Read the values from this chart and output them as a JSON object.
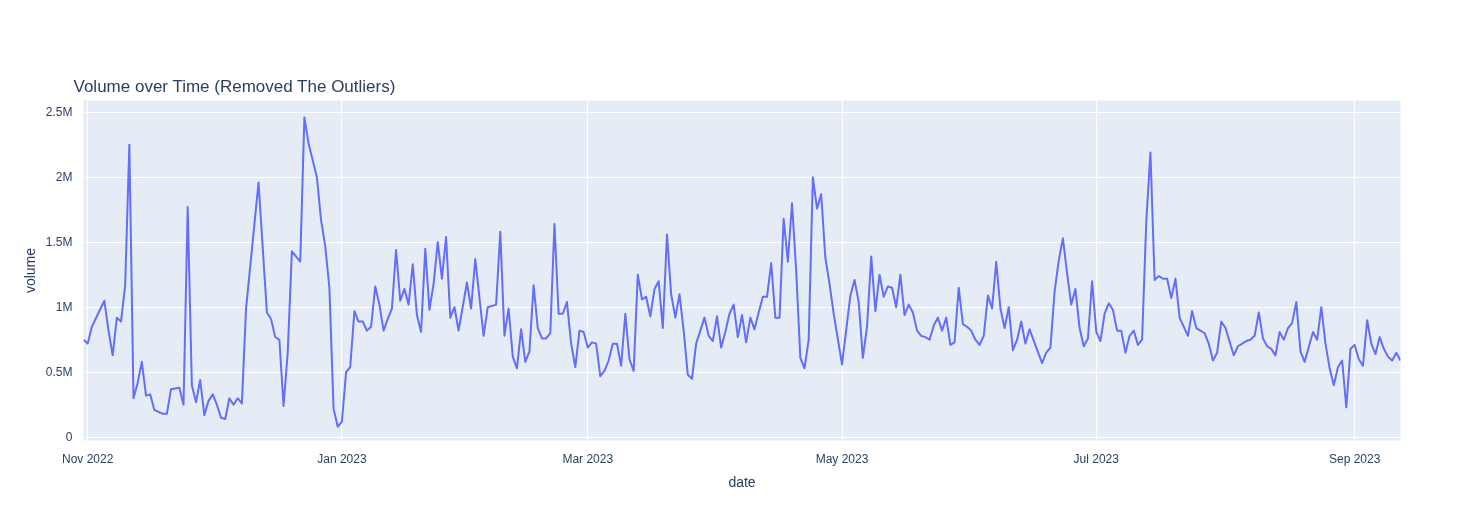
{
  "chart_data": {
    "type": "line",
    "title": "Volume over Time (Removed The Outliers)",
    "xlabel": "date",
    "ylabel": "volume",
    "xlim": [
      "2022-10-31",
      "2023-09-12"
    ],
    "xticks": [
      {
        "value": "2022-11-01",
        "label": "Nov 2022"
      },
      {
        "value": "2023-01-01",
        "label": "Jan 2023"
      },
      {
        "value": "2023-03-01",
        "label": "Mar 2023"
      },
      {
        "value": "2023-05-01",
        "label": "May 2023"
      },
      {
        "value": "2023-07-01",
        "label": "Jul 2023"
      },
      {
        "value": "2023-09-01",
        "label": "Sep 2023"
      }
    ],
    "ylim": [
      -0.025,
      2.59
    ],
    "yticks": [
      0,
      {
        "value": 0.5,
        "label": "0.5M"
      },
      {
        "value": 1,
        "label": "1M"
      },
      {
        "value": 1.5,
        "label": "1.5M"
      },
      {
        "value": 2,
        "label": "2M"
      },
      {
        "value": 2.5,
        "label": "2.5M"
      }
    ],
    "grid": true,
    "series": [
      {
        "color": "#636efa",
        "x": [
          "2022-10-31",
          "2022-11-01",
          "2022-11-02",
          "2022-11-05",
          "2022-11-06",
          "2022-11-07",
          "2022-11-08",
          "2022-11-09",
          "2022-11-10",
          "2022-11-11",
          "2022-11-12",
          "2022-11-13",
          "2022-11-14",
          "2022-11-15",
          "2022-11-16",
          "2022-11-17",
          "2022-11-19",
          "2022-11-20",
          "2022-11-21",
          "2022-11-23",
          "2022-11-24",
          "2022-11-25",
          "2022-11-26",
          "2022-11-27",
          "2022-11-28",
          "2022-11-29",
          "2022-11-30",
          "2022-12-01",
          "2022-12-02",
          "2022-12-03",
          "2022-12-04",
          "2022-12-05",
          "2022-12-06",
          "2022-12-07",
          "2022-12-08",
          "2022-12-09",
          "2022-12-12",
          "2022-12-14",
          "2022-12-15",
          "2022-12-16",
          "2022-12-17",
          "2022-12-18",
          "2022-12-19",
          "2022-12-20",
          "2022-12-22",
          "2022-12-23",
          "2022-12-24",
          "2022-12-26",
          "2022-12-27",
          "2022-12-28",
          "2022-12-29",
          "2022-12-30",
          "2022-12-31",
          "2023-01-01",
          "2023-01-02",
          "2023-01-03",
          "2023-01-04",
          "2023-01-05",
          "2023-01-06",
          "2023-01-07",
          "2023-01-08",
          "2023-01-09",
          "2023-01-10",
          "2023-01-11",
          "2023-01-12",
          "2023-01-13",
          "2023-01-14",
          "2023-01-15",
          "2023-01-16",
          "2023-01-17",
          "2023-01-18",
          "2023-01-19",
          "2023-01-20",
          "2023-01-21",
          "2023-01-22",
          "2023-01-23",
          "2023-01-24",
          "2023-01-25",
          "2023-01-26",
          "2023-01-27",
          "2023-01-28",
          "2023-01-29",
          "2023-01-31",
          "2023-02-01",
          "2023-02-02",
          "2023-02-04",
          "2023-02-05",
          "2023-02-07",
          "2023-02-08",
          "2023-02-09",
          "2023-02-10",
          "2023-02-11",
          "2023-02-12",
          "2023-02-13",
          "2023-02-14",
          "2023-02-15",
          "2023-02-16",
          "2023-02-17",
          "2023-02-18",
          "2023-02-19",
          "2023-02-20",
          "2023-02-21",
          "2023-02-22",
          "2023-02-23",
          "2023-02-24",
          "2023-02-25",
          "2023-02-26",
          "2023-02-27",
          "2023-02-28",
          "2023-03-01",
          "2023-03-02",
          "2023-03-03",
          "2023-03-04",
          "2023-03-05",
          "2023-03-06",
          "2023-03-07",
          "2023-03-08",
          "2023-03-09",
          "2023-03-10",
          "2023-03-11",
          "2023-03-12",
          "2023-03-13",
          "2023-03-14",
          "2023-03-15",
          "2023-03-16",
          "2023-03-17",
          "2023-03-18",
          "2023-03-19",
          "2023-03-20",
          "2023-03-21",
          "2023-03-22",
          "2023-03-23",
          "2023-03-24",
          "2023-03-25",
          "2023-03-26",
          "2023-03-27",
          "2023-03-29",
          "2023-03-30",
          "2023-03-31",
          "2023-04-01",
          "2023-04-02",
          "2023-04-03",
          "2023-04-04",
          "2023-04-05",
          "2023-04-06",
          "2023-04-07",
          "2023-04-08",
          "2023-04-09",
          "2023-04-10",
          "2023-04-11",
          "2023-04-12",
          "2023-04-13",
          "2023-04-14",
          "2023-04-15",
          "2023-04-16",
          "2023-04-17",
          "2023-04-18",
          "2023-04-19",
          "2023-04-20",
          "2023-04-21",
          "2023-04-22",
          "2023-04-23",
          "2023-04-24",
          "2023-04-25",
          "2023-04-26",
          "2023-04-27",
          "2023-04-28",
          "2023-04-29",
          "2023-05-01",
          "2023-05-03",
          "2023-05-04",
          "2023-05-05",
          "2023-05-06",
          "2023-05-07",
          "2023-05-08",
          "2023-05-09",
          "2023-05-10",
          "2023-05-11",
          "2023-05-12",
          "2023-05-13",
          "2023-05-14",
          "2023-05-15",
          "2023-05-16",
          "2023-05-17",
          "2023-05-18",
          "2023-05-19",
          "2023-05-20",
          "2023-05-21",
          "2023-05-22",
          "2023-05-23",
          "2023-05-24",
          "2023-05-25",
          "2023-05-26",
          "2023-05-27",
          "2023-05-28",
          "2023-05-29",
          "2023-05-30",
          "2023-05-31",
          "2023-06-01",
          "2023-06-02",
          "2023-06-03",
          "2023-06-04",
          "2023-06-05",
          "2023-06-06",
          "2023-06-07",
          "2023-06-08",
          "2023-06-09",
          "2023-06-10",
          "2023-06-11",
          "2023-06-12",
          "2023-06-13",
          "2023-06-14",
          "2023-06-15",
          "2023-06-18",
          "2023-06-19",
          "2023-06-20",
          "2023-06-21",
          "2023-06-22",
          "2023-06-23",
          "2023-06-24",
          "2023-06-25",
          "2023-06-26",
          "2023-06-27",
          "2023-06-28",
          "2023-06-29",
          "2023-06-30",
          "2023-07-01",
          "2023-07-02",
          "2023-07-03",
          "2023-07-04",
          "2023-07-05",
          "2023-07-06",
          "2023-07-07",
          "2023-07-08",
          "2023-07-09",
          "2023-07-10",
          "2023-07-11",
          "2023-07-12",
          "2023-07-13",
          "2023-07-14",
          "2023-07-15",
          "2023-07-16",
          "2023-07-17",
          "2023-07-18",
          "2023-07-19",
          "2023-07-20",
          "2023-07-21",
          "2023-07-23",
          "2023-07-24",
          "2023-07-25",
          "2023-07-26",
          "2023-07-27",
          "2023-07-28",
          "2023-07-29",
          "2023-07-30",
          "2023-07-31",
          "2023-08-01",
          "2023-08-03",
          "2023-08-04",
          "2023-08-06",
          "2023-08-07",
          "2023-08-08",
          "2023-08-09",
          "2023-08-10",
          "2023-08-11",
          "2023-08-12",
          "2023-08-13",
          "2023-08-14",
          "2023-08-15",
          "2023-08-16",
          "2023-08-17",
          "2023-08-18",
          "2023-08-19",
          "2023-08-20",
          "2023-08-22",
          "2023-08-23",
          "2023-08-24",
          "2023-08-25",
          "2023-08-26",
          "2023-08-27",
          "2023-08-28",
          "2023-08-29",
          "2023-08-30",
          "2023-08-31",
          "2023-09-01",
          "2023-09-02",
          "2023-09-03",
          "2023-09-04",
          "2023-09-05",
          "2023-09-06",
          "2023-09-07",
          "2023-09-08",
          "2023-09-09",
          "2023-09-10",
          "2023-09-11",
          "2023-09-12"
        ],
        "values": [
          0.75,
          0.72,
          0.85,
          1.05,
          0.82,
          0.63,
          0.92,
          0.89,
          1.17,
          2.25,
          0.3,
          0.42,
          0.58,
          0.32,
          0.33,
          0.21,
          0.18,
          0.18,
          0.37,
          0.38,
          0.25,
          1.77,
          0.4,
          0.27,
          0.44,
          0.17,
          0.28,
          0.33,
          0.25,
          0.15,
          0.14,
          0.3,
          0.25,
          0.3,
          0.26,
          0.99,
          1.96,
          0.96,
          0.91,
          0.77,
          0.75,
          0.24,
          0.65,
          1.43,
          1.35,
          2.46,
          2.26,
          2.0,
          1.67,
          1.47,
          1.15,
          0.22,
          0.08,
          0.12,
          0.5,
          0.54,
          0.97,
          0.89,
          0.89,
          0.82,
          0.85,
          1.16,
          1.02,
          0.82,
          0.91,
          0.99,
          1.44,
          1.05,
          1.14,
          1.02,
          1.33,
          0.94,
          0.81,
          1.45,
          0.98,
          1.18,
          1.5,
          1.22,
          1.54,
          0.92,
          1.0,
          0.82,
          1.19,
          0.99,
          1.37,
          0.78,
          1.0,
          1.02,
          1.58,
          0.78,
          0.99,
          0.62,
          0.53,
          0.83,
          0.58,
          0.66,
          1.17,
          0.84,
          0.76,
          0.76,
          0.8,
          1.64,
          0.95,
          0.95,
          1.04,
          0.72,
          0.54,
          0.82,
          0.81,
          0.69,
          0.73,
          0.72,
          0.47,
          0.51,
          0.59,
          0.72,
          0.72,
          0.55,
          0.95,
          0.6,
          0.51,
          1.25,
          1.06,
          1.08,
          0.93,
          1.14,
          1.2,
          0.84,
          1.56,
          1.1,
          0.92,
          1.1,
          0.82,
          0.48,
          0.45,
          0.72,
          0.92,
          0.78,
          0.74,
          0.93,
          0.69,
          0.81,
          0.95,
          1.02,
          0.77,
          0.94,
          0.73,
          0.92,
          0.83,
          0.96,
          1.08,
          1.08,
          1.34,
          0.92,
          0.92,
          1.68,
          1.35,
          1.8,
          1.28,
          0.61,
          0.53,
          0.75,
          2.0,
          1.76,
          1.87,
          1.38,
          1.18,
          0.95,
          0.56,
          1.09,
          1.21,
          1.04,
          0.61,
          0.85,
          1.39,
          0.97,
          1.25,
          1.08,
          1.16,
          1.15,
          1.0,
          1.25,
          0.94,
          1.02,
          0.96,
          0.82,
          0.78,
          0.77,
          0.75,
          0.86,
          0.92,
          0.82,
          0.92,
          0.71,
          0.73,
          1.15,
          0.87,
          0.85,
          0.82,
          0.75,
          0.71,
          0.78,
          1.09,
          0.99,
          1.35,
          0.99,
          0.84,
          1.0,
          0.67,
          0.75,
          0.89,
          0.72,
          0.83,
          0.57,
          0.65,
          0.69,
          1.12,
          1.36,
          1.53,
          1.26,
          1.02,
          1.14,
          0.84,
          0.7,
          0.76,
          1.2,
          0.81,
          0.74,
          0.95,
          1.03,
          0.98,
          0.82,
          0.82,
          0.65,
          0.78,
          0.82,
          0.71,
          0.75,
          1.66,
          2.19,
          1.21,
          1.24,
          1.22,
          1.22,
          1.07,
          1.22,
          0.92,
          0.78,
          0.97,
          0.84,
          0.82,
          0.8,
          0.72,
          0.59,
          0.65,
          0.89,
          0.84,
          0.63,
          0.7,
          0.74,
          0.75,
          0.78,
          0.96,
          0.76,
          0.7,
          0.68,
          0.63,
          0.81,
          0.75,
          0.84,
          0.88,
          1.04,
          0.66,
          0.58,
          0.81,
          0.75,
          1.0,
          0.72,
          0.53,
          0.4,
          0.54,
          0.59,
          0.23,
          0.68,
          0.71,
          0.6,
          0.55,
          0.9,
          0.72,
          0.64,
          0.77,
          0.68,
          0.62,
          0.59,
          0.65,
          0.59
        ]
      }
    ]
  }
}
